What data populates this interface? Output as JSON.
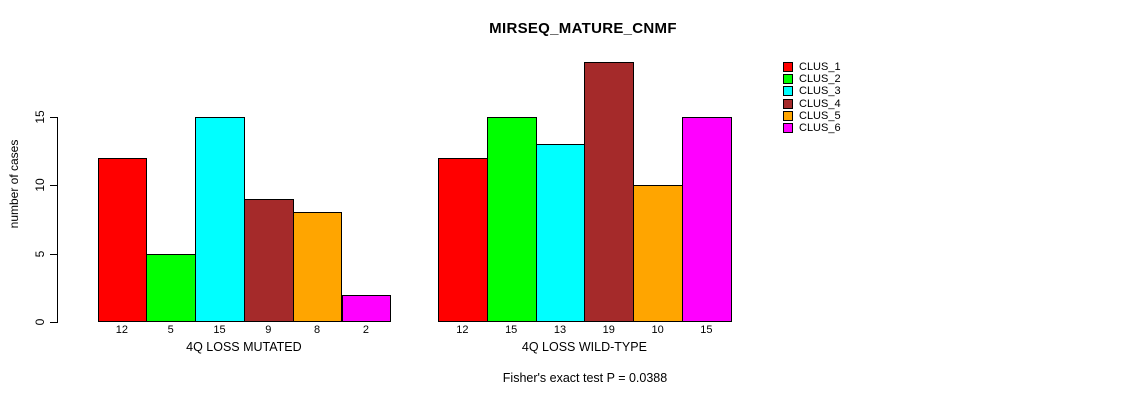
{
  "chart_data": {
    "type": "bar",
    "title": "MIRSEQ_MATURE_CNMF",
    "ylabel": "number of cases",
    "footer": "Fisher's exact test P = 0.0388",
    "yticks": [
      0,
      5,
      10,
      15
    ],
    "ylim": [
      0,
      20
    ],
    "grid": false,
    "legend_position": "right",
    "legend": [
      {
        "label": "CLUS_1",
        "color": "#FF0000"
      },
      {
        "label": "CLUS_2",
        "color": "#00FF00"
      },
      {
        "label": "CLUS_3",
        "color": "#00FFFF"
      },
      {
        "label": "CLUS_4",
        "color": "#A52A2A"
      },
      {
        "label": "CLUS_5",
        "color": "#FFA500"
      },
      {
        "label": "CLUS_6",
        "color": "#FF00FF"
      }
    ],
    "groups": [
      {
        "label": "4Q LOSS MUTATED",
        "values": [
          12,
          5,
          15,
          9,
          8,
          2
        ]
      },
      {
        "label": "4Q LOSS WILD-TYPE",
        "values": [
          12,
          15,
          13,
          19,
          10,
          15
        ]
      }
    ]
  }
}
